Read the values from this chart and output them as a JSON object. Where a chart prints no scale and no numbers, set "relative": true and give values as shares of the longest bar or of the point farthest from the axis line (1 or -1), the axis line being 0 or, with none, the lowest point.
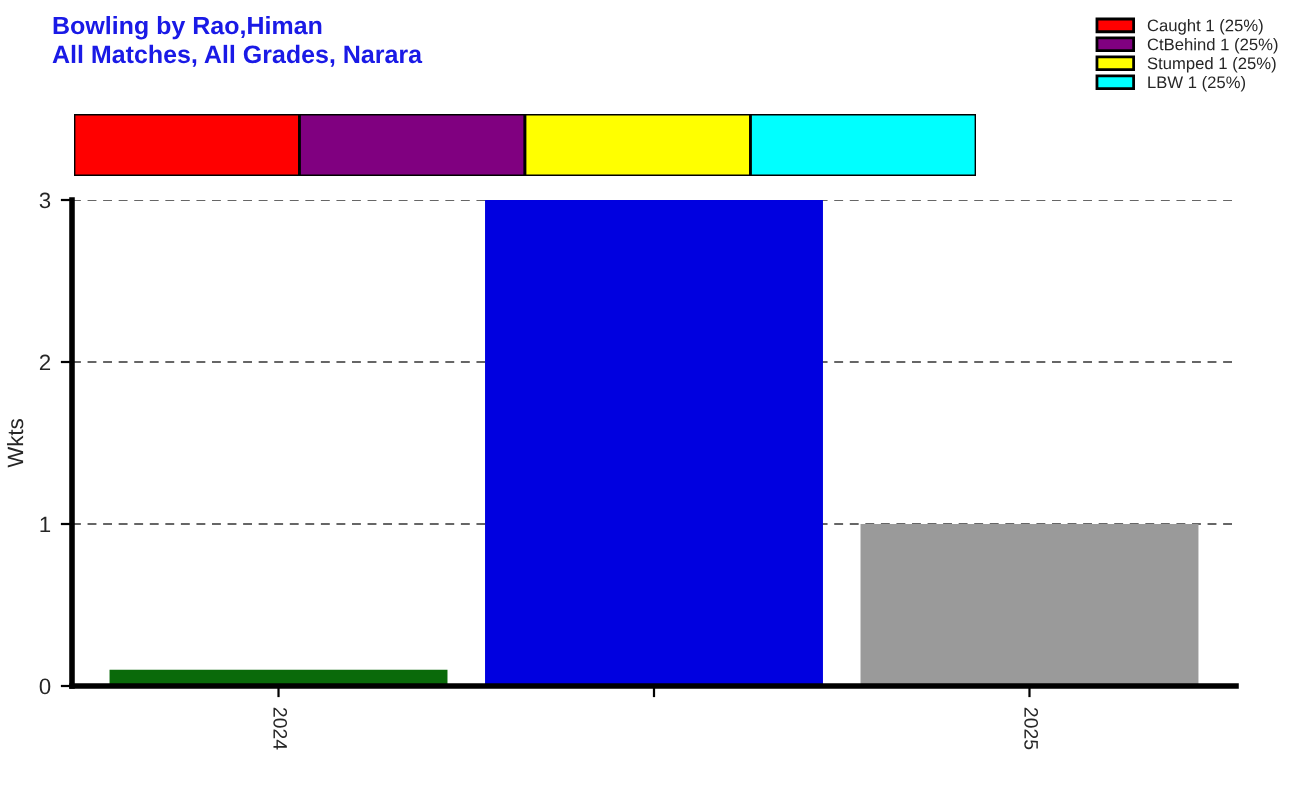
{
  "chart_data": [
    {
      "type": "bar",
      "title": "Bowling by Rao,Himan\nAll Matches, All Grades, Narara",
      "orientation": "horizontal",
      "stacked": true,
      "relative": true,
      "categories": [
        null
      ],
      "legend": "top right",
      "series": [
        {
          "name": "Caught 1 (25%)",
          "color": "#ff0000",
          "values": [
            0.25
          ]
        },
        {
          "name": "CtBehind 1 (25%)",
          "color": "#800080",
          "values": [
            0.25
          ]
        },
        {
          "name": "Stumped 1 (25%)",
          "color": "#ffff00",
          "values": [
            0.25
          ]
        },
        {
          "name": "LBW 1 (25%)",
          "color": "#00ffff",
          "values": [
            0.25
          ]
        }
      ]
    },
    {
      "type": "bar",
      "ylabel": "Wkts",
      "categories": [
        "2024",
        null,
        "2025"
      ],
      "values": [
        0.1,
        3,
        1
      ],
      "colors": [
        "#0a6a0a",
        "#0000e0",
        "#9a9a9a"
      ],
      "ylim": [
        0,
        3
      ],
      "yticks": [
        0,
        1,
        2,
        3
      ],
      "grid": "y"
    }
  ]
}
